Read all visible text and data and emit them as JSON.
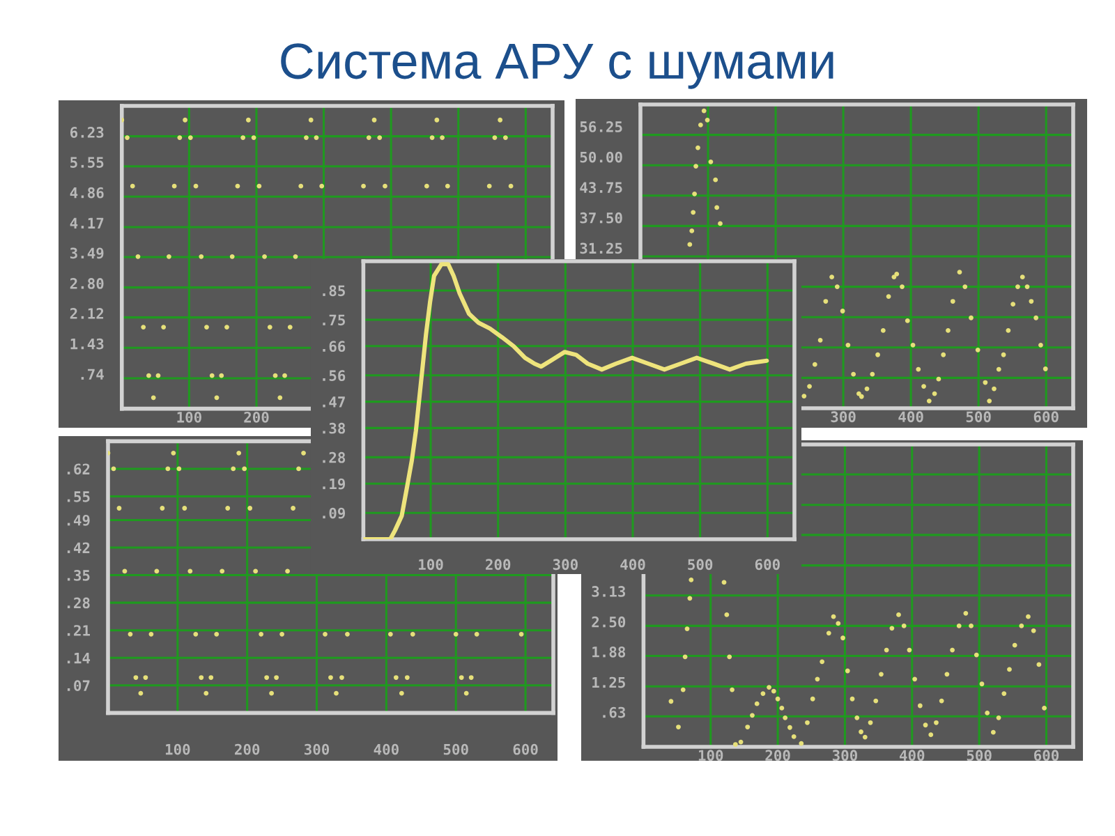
{
  "chart_data": [
    {
      "type": "scatter",
      "title": "Система АРУ с шумами",
      "color": "#e6e07a",
      "marker": "circle",
      "grid": true,
      "xlim": [
        0,
        640
      ],
      "xticks": [
        100,
        200,
        {
          "value": 300,
          "label": null
        },
        {
          "value": 400,
          "label": null
        },
        {
          "value": 500,
          "label": null
        },
        {
          "value": 600,
          "label": null
        }
      ],
      "ylim": [
        0.05,
        6.92
      ],
      "yticks": [
        {
          "value": 0.74,
          "label": ".74"
        },
        1.43,
        2.12,
        {
          "value": 2.8,
          "label": "2.80"
        },
        3.49,
        4.17,
        4.86,
        5.55,
        6.23
      ],
      "x": [
        0,
        8,
        16,
        24,
        32,
        40,
        47,
        54,
        62,
        70,
        78,
        86,
        94,
        102,
        110,
        118,
        126,
        134,
        141,
        148,
        156,
        164,
        172,
        180,
        188,
        196,
        204,
        212,
        220,
        228,
        235,
        242,
        250,
        258,
        266,
        274,
        281,
        289,
        297,
        359,
        367,
        375,
        383,
        391,
        453,
        461,
        468,
        476,
        484,
        546,
        554,
        562,
        570,
        578
      ],
      "values": [
        6.6,
        6.2,
        5.1,
        3.5,
        1.9,
        0.8,
        0.3,
        0.8,
        1.9,
        3.5,
        5.1,
        6.2,
        6.6,
        6.2,
        5.1,
        3.5,
        1.9,
        0.8,
        0.3,
        0.8,
        1.9,
        3.5,
        5.1,
        6.2,
        6.6,
        6.2,
        5.1,
        3.5,
        1.9,
        0.8,
        0.3,
        0.8,
        1.9,
        3.5,
        5.1,
        6.2,
        6.6,
        6.2,
        5.1,
        5.1,
        6.2,
        6.6,
        6.2,
        5.1,
        5.1,
        6.2,
        6.6,
        6.2,
        5.1,
        5.1,
        6.2,
        6.6,
        6.2,
        5.1
      ]
    },
    {
      "type": "scatter",
      "color": "#e6e07a",
      "marker": "circle",
      "grid": true,
      "xlim": [
        0,
        640
      ],
      "xticks": [
        {
          "value": 100,
          "label": null
        },
        {
          "value": 200,
          "label": null
        },
        300,
        400,
        500,
        600
      ],
      "ylim": [
        0,
        62.5
      ],
      "yticks": [
        {
          "value": 6.25,
          "label": null
        },
        {
          "value": 12.5,
          "label": null
        },
        {
          "value": 18.75,
          "label": null
        },
        {
          "value": 25,
          "label": null
        },
        31.25,
        {
          "value": 37.5,
          "label": "37.50"
        },
        43.75,
        {
          "value": 50,
          "label": "50.00"
        },
        56.25
      ],
      "x": [
        73,
        76,
        78,
        80,
        82,
        85,
        89,
        94,
        99,
        104,
        111,
        113,
        118,
        242,
        250,
        258,
        266,
        274,
        283,
        291,
        299,
        307,
        315,
        323,
        327,
        335,
        343,
        351,
        359,
        367,
        375,
        379,
        387,
        395,
        403,
        411,
        419,
        427,
        435,
        441,
        448,
        455,
        462,
        472,
        480,
        489,
        499,
        510,
        516,
        523,
        530,
        537,
        544,
        551,
        558,
        565,
        572,
        578,
        585,
        592,
        599
      ],
      "values": [
        33.7,
        36.5,
        40.3,
        44.1,
        49.8,
        53.6,
        58.3,
        61.2,
        59.3,
        50.7,
        47.0,
        41.3,
        38.0,
        2.5,
        4.5,
        9,
        14,
        22,
        27,
        25,
        20,
        13,
        7,
        3,
        2.4,
        4,
        7,
        11,
        16,
        23,
        27,
        27.6,
        25,
        18,
        13,
        8,
        4.5,
        1.5,
        3,
        6,
        11,
        16,
        22,
        28,
        25,
        18.6,
        12,
        5.3,
        1.5,
        4,
        8,
        11,
        16,
        21.4,
        25,
        27,
        25,
        22,
        18.6,
        13,
        8.1
      ]
    },
    {
      "type": "line",
      "color": "#eee47c",
      "line_style": "solid",
      "grid": true,
      "xlim": [
        0,
        640
      ],
      "xticks": [
        100,
        200,
        300,
        400,
        500,
        600
      ],
      "ylim": [
        0,
        0.95
      ],
      "yticks": [
        {
          "value": 0.09,
          "label": ".09"
        },
        {
          "value": 0.19,
          "label": ".19"
        },
        {
          "value": 0.28,
          "label": ".28"
        },
        {
          "value": 0.38,
          "label": ".38"
        },
        {
          "value": 0.47,
          "label": ".47"
        },
        {
          "value": 0.56,
          "label": ".56"
        },
        {
          "value": 0.66,
          "label": ".66"
        },
        {
          "value": 0.75,
          "label": ".75"
        },
        {
          "value": 0.85,
          "label": ".85"
        }
      ],
      "x": [
        0,
        40,
        47,
        57,
        65,
        72,
        78,
        83,
        88,
        93,
        99,
        105,
        116,
        126,
        134,
        143,
        157,
        171,
        188,
        206,
        223,
        240,
        254,
        264,
        278,
        299,
        316,
        333,
        354,
        375,
        399,
        423,
        447,
        471,
        495,
        520,
        544,
        568,
        599
      ],
      "values": [
        0.0,
        0.0,
        0.03,
        0.08,
        0.18,
        0.27,
        0.37,
        0.48,
        0.59,
        0.7,
        0.81,
        0.9,
        0.94,
        0.94,
        0.9,
        0.84,
        0.77,
        0.74,
        0.72,
        0.69,
        0.66,
        0.62,
        0.6,
        0.59,
        0.61,
        0.64,
        0.63,
        0.6,
        0.58,
        0.6,
        0.62,
        0.6,
        0.58,
        0.6,
        0.62,
        0.6,
        0.58,
        0.6,
        0.61
      ]
    },
    {
      "type": "scatter",
      "color": "#e6e07a",
      "marker": "circle",
      "grid": true,
      "xlim": [
        0,
        640
      ],
      "xticks": [
        100,
        200,
        300,
        400,
        500,
        600
      ],
      "ylim": [
        0,
        0.69
      ],
      "yticks": [
        {
          "value": 0.07,
          "label": ".07"
        },
        {
          "value": 0.14,
          "label": ".14"
        },
        {
          "value": 0.21,
          "label": ".21"
        },
        {
          "value": 0.28,
          "label": ".28"
        },
        {
          "value": 0.35,
          "label": ".35"
        },
        {
          "value": 0.42,
          "label": ".42"
        },
        {
          "value": 0.49,
          "label": ".49"
        },
        {
          "value": 0.55,
          "label": ".55"
        },
        {
          "value": 0.62,
          "label": ".62"
        }
      ],
      "x": [
        0,
        8,
        16,
        24,
        32,
        40,
        47,
        54,
        62,
        70,
        78,
        86,
        94,
        102,
        110,
        118,
        126,
        134,
        141,
        148,
        156,
        164,
        172,
        180,
        188,
        196,
        204,
        212,
        220,
        228,
        235,
        242,
        250,
        258,
        266,
        274,
        281,
        312,
        320,
        328,
        336,
        344,
        406,
        414,
        422,
        430,
        438,
        500,
        508,
        515,
        522,
        530,
        594
      ],
      "values": [
        0.66,
        0.62,
        0.52,
        0.36,
        0.2,
        0.09,
        0.05,
        0.09,
        0.2,
        0.36,
        0.52,
        0.62,
        0.66,
        0.62,
        0.52,
        0.36,
        0.2,
        0.09,
        0.05,
        0.09,
        0.2,
        0.36,
        0.52,
        0.62,
        0.66,
        0.62,
        0.52,
        0.36,
        0.2,
        0.09,
        0.05,
        0.09,
        0.2,
        0.36,
        0.52,
        0.62,
        0.66,
        0.2,
        0.09,
        0.05,
        0.09,
        0.2,
        0.2,
        0.09,
        0.05,
        0.09,
        0.2,
        0.2,
        0.09,
        0.05,
        0.09,
        0.2,
        0.2
      ]
    },
    {
      "type": "scatter",
      "color": "#e6e07a",
      "marker": "circle",
      "grid": true,
      "xlim": [
        0,
        640
      ],
      "xticks": [
        100,
        200,
        300,
        400,
        500,
        600
      ],
      "ylim": [
        0,
        6.25
      ],
      "yticks": [
        {
          "value": 0.63,
          "label": ".63"
        },
        1.25,
        1.88,
        {
          "value": 2.5,
          "label": "2.50"
        },
        3.13,
        {
          "value": 3.75,
          "label": null
        },
        {
          "value": 4.38,
          "label": null
        },
        {
          "value": 5.0,
          "label": null
        },
        {
          "value": 5.63,
          "label": null
        }
      ],
      "x": [
        41,
        52,
        59,
        62,
        65,
        69,
        71,
        120,
        124,
        128,
        132,
        137,
        145,
        155,
        162,
        169,
        178,
        187,
        194,
        200,
        206,
        211,
        218,
        224,
        235,
        244,
        252,
        259,
        266,
        276,
        283,
        290,
        297,
        304,
        311,
        318,
        324,
        330,
        338,
        346,
        354,
        362,
        370,
        380,
        388,
        396,
        404,
        412,
        420,
        428,
        436,
        444,
        452,
        460,
        470,
        480,
        488,
        496,
        504,
        512,
        521,
        529,
        537,
        545,
        553,
        563,
        573,
        581,
        589,
        597
      ],
      "values": [
        0.94,
        0.41,
        1.18,
        1.86,
        2.44,
        3.07,
        3.45,
        3.4,
        2.73,
        1.86,
        1.18,
        0.05,
        0.1,
        0.41,
        0.65,
        0.89,
        1.1,
        1.23,
        1.15,
        0.99,
        0.8,
        0.6,
        0.4,
        0.21,
        0.07,
        0.5,
        0.99,
        1.4,
        1.76,
        2.35,
        2.69,
        2.55,
        2.25,
        1.57,
        0.99,
        0.6,
        0.31,
        0.2,
        0.5,
        0.95,
        1.5,
        2.0,
        2.45,
        2.73,
        2.5,
        2.0,
        1.4,
        0.85,
        0.45,
        0.25,
        0.5,
        0.95,
        1.5,
        2.0,
        2.5,
        2.76,
        2.5,
        1.9,
        1.3,
        0.7,
        0.3,
        0.6,
        1.1,
        1.6,
        2.1,
        2.5,
        2.69,
        2.4,
        1.7,
        0.8
      ]
    }
  ]
}
